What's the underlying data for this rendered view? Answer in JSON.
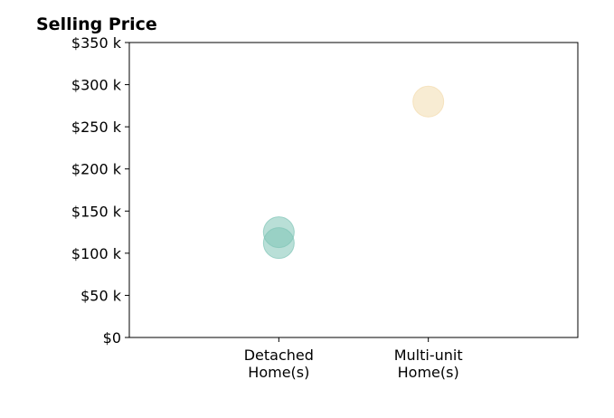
{
  "chart_data": {
    "type": "scatter",
    "title": "Selling Price",
    "xlabel": "",
    "ylabel": "",
    "categories": [
      [
        "Detached",
        "Home(s)"
      ],
      [
        "Multi-unit",
        "Home(s)"
      ]
    ],
    "ylim": [
      0,
      350000
    ],
    "yticks": [
      0,
      50000,
      100000,
      150000,
      200000,
      250000,
      300000,
      350000
    ],
    "ytick_labels": [
      "$0",
      "$50 k",
      "$100 k",
      "$150 k",
      "$200 k",
      "$250 k",
      "$300 k",
      "$350 k"
    ],
    "grid": false,
    "points": [
      {
        "category": 0,
        "value": 125000,
        "color": "#7fc4b6"
      },
      {
        "category": 0,
        "value": 112000,
        "color": "#7fc4b6"
      },
      {
        "category": 1,
        "value": 280000,
        "color": "#f3dcae"
      }
    ]
  }
}
